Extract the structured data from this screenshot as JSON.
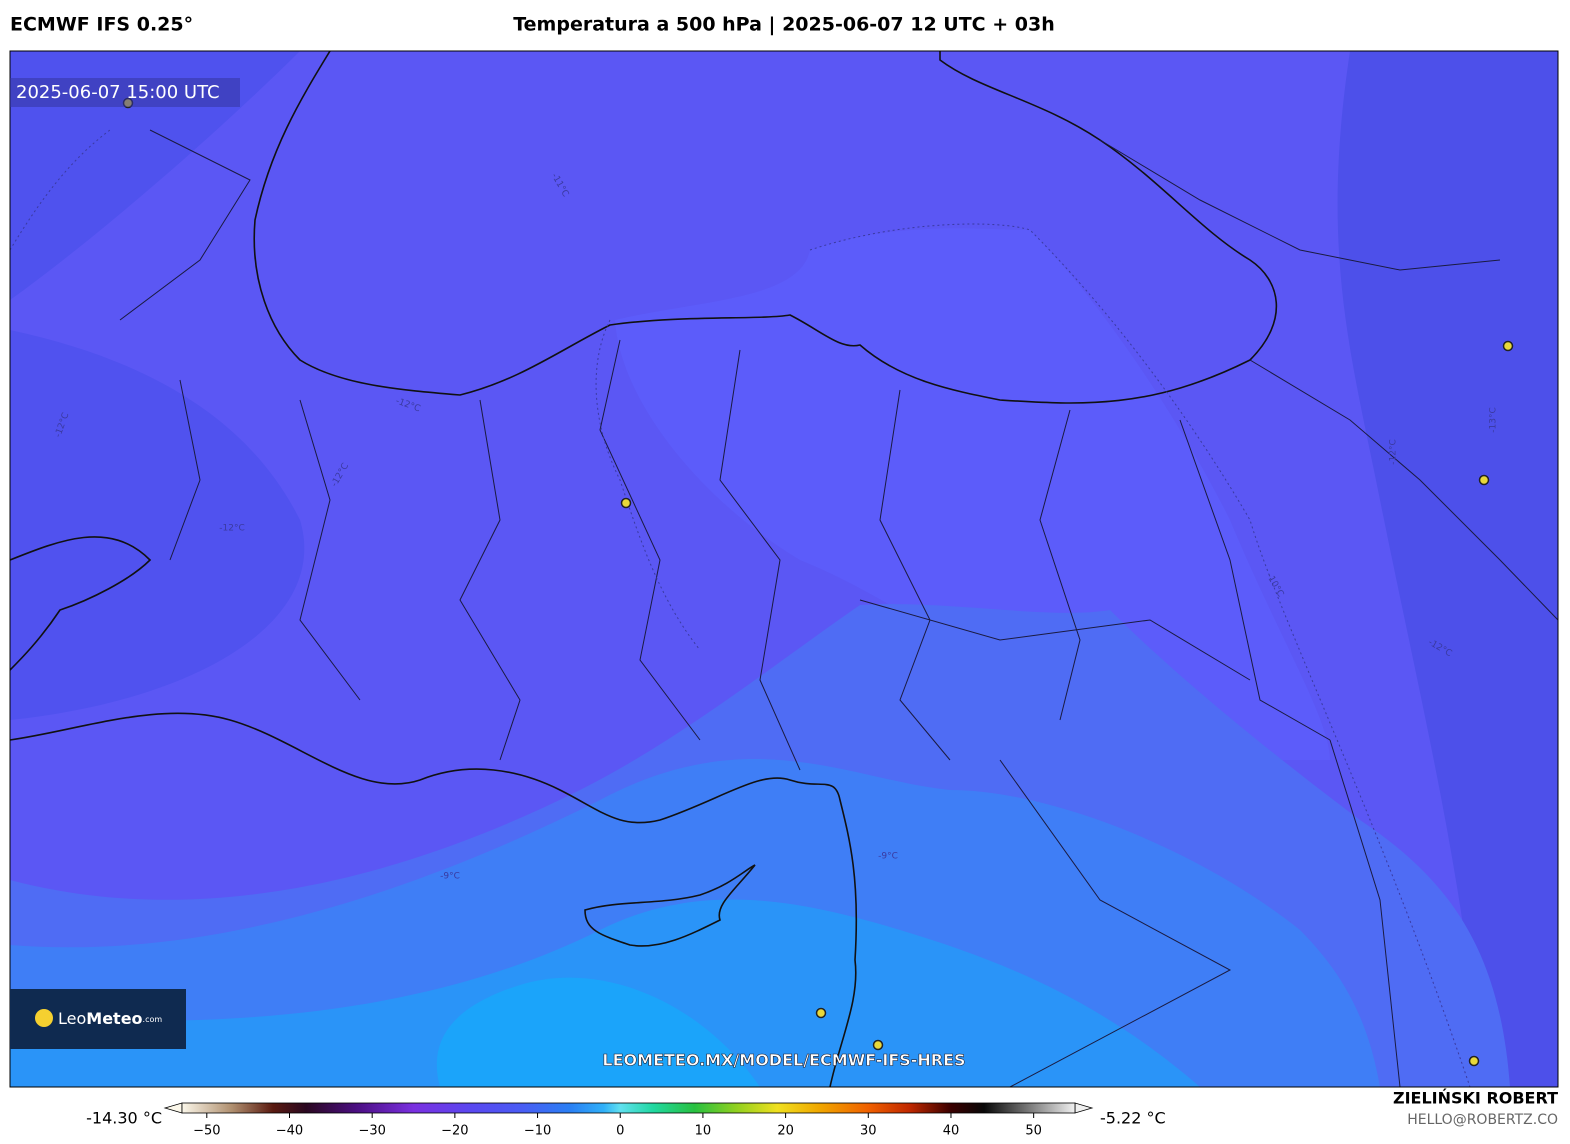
{
  "header": {
    "model": "ECMWF IFS 0.25°",
    "title": "Temperatura a 500 hPa | 2025-06-07 12 UTC + 03h"
  },
  "map": {
    "valid_time": "2025-06-07 15:00 UTC",
    "contour_labels": [
      "-11°C",
      "-12°C",
      "-12°C",
      "-12°C",
      "-12°C",
      "-9°C",
      "-9°C",
      "-10°C",
      "-12°C",
      "-12°C",
      "-13°C"
    ],
    "watermark": "LEOMETEO.MX/MODEL/ECMWF-IFS-HRES"
  },
  "logo": {
    "brand": "Leo",
    "brand_bold": "Meteo",
    "suffix": ".com"
  },
  "colorbar": {
    "min_label": "-14.30 °C",
    "max_label": "-5.22 °C",
    "lim": [
      -53,
      55
    ],
    "ticks": [
      {
        "value": -50,
        "label": "−50"
      },
      {
        "value": -40,
        "label": "−40"
      },
      {
        "value": -30,
        "label": "−30"
      },
      {
        "value": -20,
        "label": "−20"
      },
      {
        "value": -10,
        "label": "−10"
      },
      0,
      10,
      20,
      30,
      40,
      50
    ]
  },
  "credits": {
    "author": "ZIELIŃSKI ROBERT",
    "email": "HELLO@ROBERTZ.CO"
  }
}
